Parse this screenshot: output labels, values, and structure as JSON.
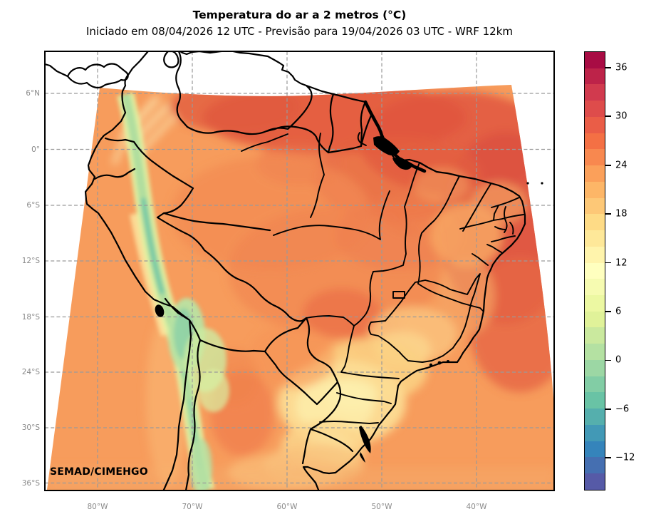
{
  "figure": {
    "title": "Temperatura do ar a 2 metros (°C)",
    "subtitle": "Iniciado em 08/04/2026 12 UTC - Previsão para 19/04/2026 03 UTC - WRF 12km",
    "watermark": "SEMAD/CIMEHGO"
  },
  "axes": {
    "lat_labels": [
      "6°N",
      "0°",
      "6°S",
      "12°S",
      "18°S",
      "24°S",
      "30°S",
      "36°S"
    ],
    "lon_labels": [
      "80°W",
      "70°W",
      "60°W",
      "50°W",
      "40°W"
    ]
  },
  "colorbar": {
    "ticks": [
      "36",
      "30",
      "24",
      "18",
      "12",
      "6",
      "0",
      "−6",
      "−12"
    ],
    "tick_values": [
      36,
      30,
      24,
      18,
      12,
      6,
      0,
      -6,
      -12
    ],
    "vmin": -16,
    "vmax": 38,
    "step_c": 2,
    "palette_top_to_bottom": [
      "#a80c44",
      "#bd2349",
      "#d13a4e",
      "#de4c4b",
      "#ea5d47",
      "#f47044",
      "#f8884f",
      "#fba05a",
      "#fdb667",
      "#fdc877",
      "#fedb86",
      "#fee899",
      "#fff4ac",
      "#ffffbf",
      "#f6fbb1",
      "#ecf8a2",
      "#e0f299",
      "#cae99e",
      "#b4e1a2",
      "#9cd7a4",
      "#82cda5",
      "#69c3a5",
      "#55afad",
      "#4299b6",
      "#3584bb",
      "#456fb1",
      "#565aa7"
    ]
  },
  "chart_data": {
    "type": "heatmap",
    "variable": "Temperatura do ar a 2 metros (°C)",
    "model": "WRF 12km",
    "init_time": "08/04/2026 12 UTC",
    "valid_time": "19/04/2026 03 UTC",
    "source": "SEMAD/CIMEHGO",
    "colorbar_ticks_c": [
      36,
      30,
      24,
      18,
      12,
      6,
      0,
      -6,
      -12
    ],
    "colorbar_range_c": [
      -16,
      38
    ],
    "lat_ticks": [
      "6°N",
      "0°",
      "6°S",
      "12°S",
      "18°S",
      "24°S",
      "30°S",
      "36°S"
    ],
    "lon_ticks": [
      "80°W",
      "70°W",
      "60°W",
      "50°W",
      "40°W"
    ],
    "approx_region_values_c": {
      "north_atlantic_and_guianas": 29,
      "amazon_interior": 26,
      "northeast_ocean": 30,
      "central_brazil": 26,
      "south_brazil_inland": 15,
      "southeast_ocean": 26,
      "andes_cordillera": 2,
      "bolivian_altiplano": 6,
      "pampas_argentina": 22
    }
  }
}
